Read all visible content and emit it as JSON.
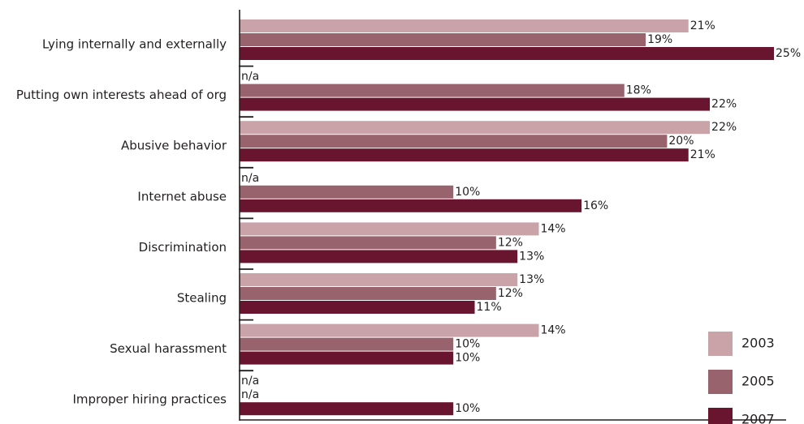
{
  "chart_data": {
    "type": "bar",
    "orientation": "horizontal",
    "title": "",
    "xlabel": "",
    "ylabel": "",
    "xlim": [
      0,
      25
    ],
    "grid": false,
    "legend_position": "bottom-right",
    "categories": [
      "Lying internally and externally",
      "Putting own interests ahead of org",
      "Abusive behavior",
      "Internet abuse",
      "Discrimination",
      "Stealing",
      "Sexual harassment",
      "Improper hiring practices"
    ],
    "series": [
      {
        "name": "2003",
        "color": "#c9a3a8",
        "values": [
          21,
          null,
          22,
          null,
          14,
          13,
          14,
          null
        ],
        "labels": [
          "21%",
          "n/a",
          "22%",
          "n/a",
          "14%",
          "13%",
          "14%",
          "n/a"
        ]
      },
      {
        "name": "2005",
        "color": "#98636c",
        "values": [
          19,
          18,
          20,
          10,
          12,
          12,
          10,
          null
        ],
        "labels": [
          "19%",
          "18%",
          "20%",
          "10%",
          "12%",
          "12%",
          "10%",
          "n/a"
        ]
      },
      {
        "name": "2007",
        "color": "#6a1530",
        "values": [
          25,
          22,
          21,
          16,
          13,
          11,
          10,
          10
        ],
        "labels": [
          "25%",
          "22%",
          "21%",
          "16%",
          "13%",
          "11%",
          "10%",
          "10%"
        ]
      }
    ]
  }
}
